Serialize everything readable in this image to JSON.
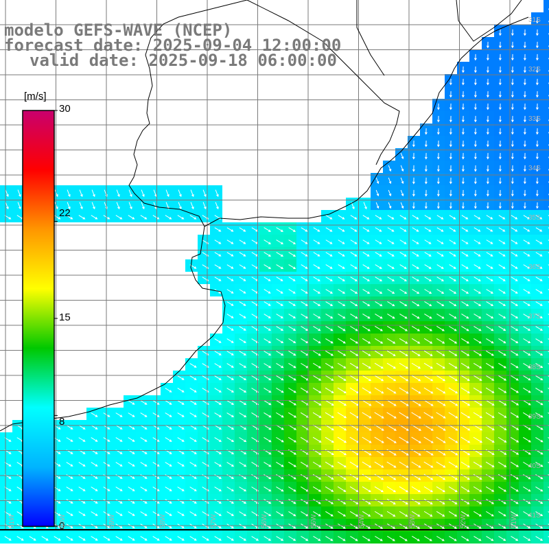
{
  "title": {
    "line1": "modelo GEFS-WAVE (NCEP)",
    "line2": "forecast date: 2025-09-04 12:00:00",
    "line3": "valid date: 2025-09-18 06:00:00"
  },
  "colorbar": {
    "unit": "[m/s]",
    "ticks": [
      "30",
      "22",
      "15",
      "8",
      "0"
    ],
    "tick_values": [
      30,
      22,
      15,
      8,
      0
    ],
    "min": 0,
    "max": 30,
    "colors": [
      "#0000ff",
      "#00b4ff",
      "#00ffff",
      "#00c800",
      "#ffff00",
      "#ff9600",
      "#ff0000",
      "#c8006e"
    ]
  },
  "latitude_labels": [
    "31S",
    "32S",
    "33S",
    "34S",
    "35S",
    "36S",
    "37S",
    "38S",
    "39S",
    "40S",
    "41S"
  ],
  "longitude_labels": [
    "61W",
    "60W",
    "59W",
    "58W",
    "57W",
    "56W",
    "55W",
    "54W",
    "53W",
    "52W",
    "51W"
  ],
  "colors": {
    "land": "#ffffff",
    "grid": "#7a7a7a",
    "coast": "#000000",
    "arrows": "#ffffff",
    "title": "#7a7a7a"
  }
}
